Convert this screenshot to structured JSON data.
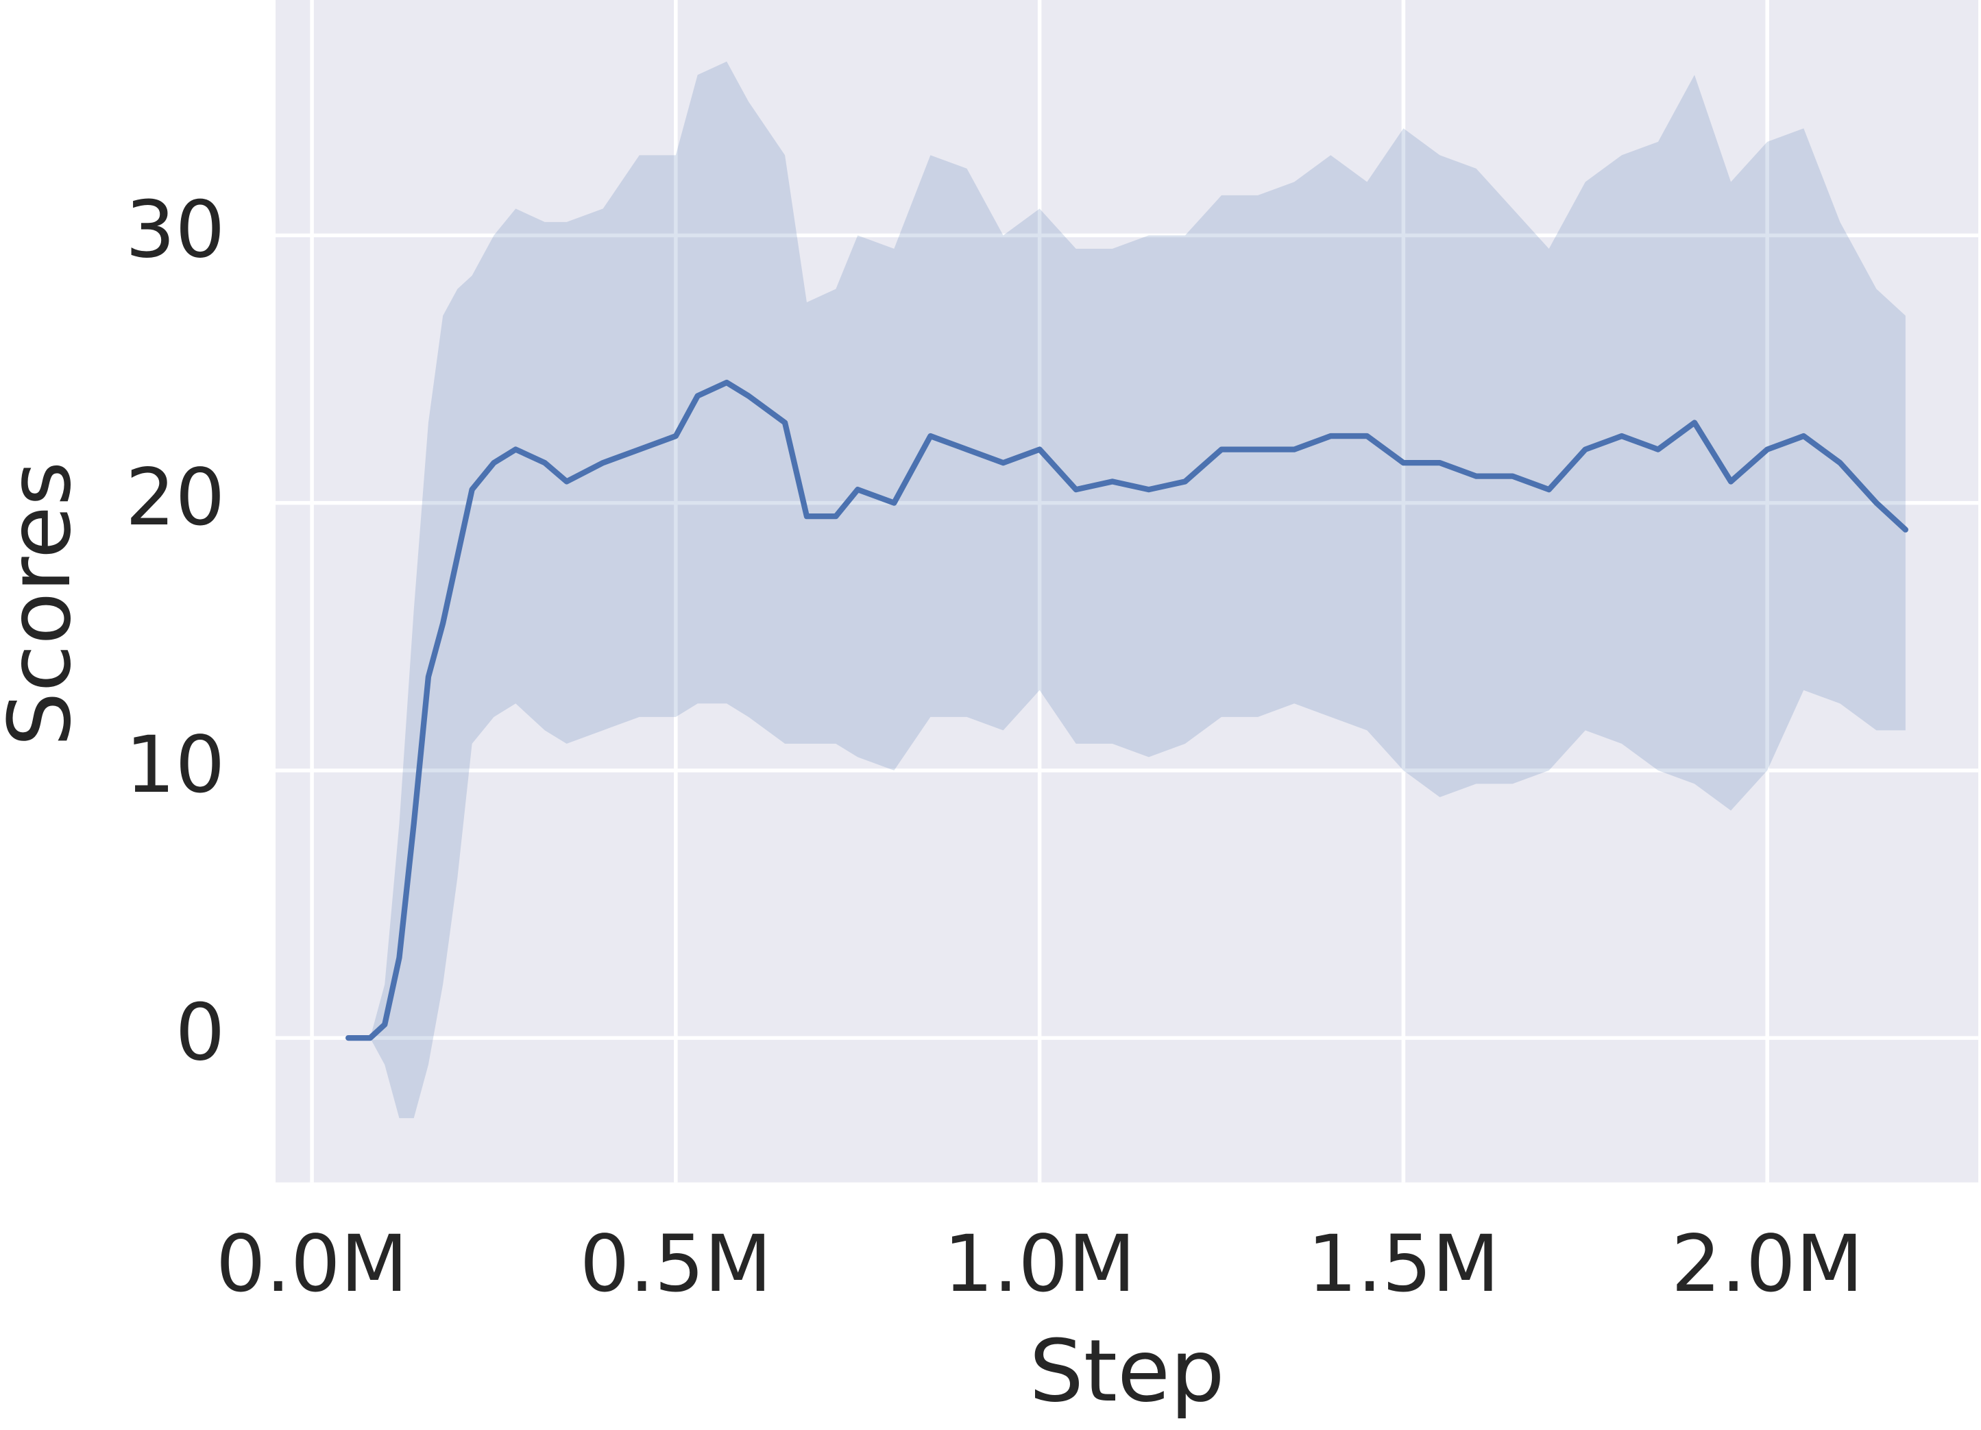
{
  "chart_data": {
    "type": "line",
    "xlabel": "Step",
    "ylabel": "Scores",
    "color": "#4c72b0",
    "background": "#eaeaf2",
    "grid": true,
    "x": [
      50000,
      80000,
      100000,
      120000,
      140000,
      160000,
      180000,
      200000,
      220000,
      250000,
      280000,
      320000,
      350000,
      400000,
      450000,
      500000,
      530000,
      570000,
      600000,
      650000,
      680000,
      720000,
      750000,
      800000,
      850000,
      900000,
      950000,
      1000000,
      1050000,
      1100000,
      1150000,
      1200000,
      1250000,
      1300000,
      1350000,
      1400000,
      1450000,
      1500000,
      1550000,
      1600000,
      1650000,
      1700000,
      1750000,
      1800000,
      1850000,
      1900000,
      1950000,
      2000000,
      2050000,
      2100000,
      2150000,
      2190000
    ],
    "values": [
      0,
      0,
      0.5,
      3,
      8,
      13.5,
      15.5,
      18,
      20.5,
      21.5,
      22,
      21.5,
      20.8,
      21.5,
      22,
      22.5,
      24,
      24.5,
      24,
      23,
      19.5,
      19.5,
      20.5,
      20,
      22.5,
      22,
      21.5,
      22,
      20.5,
      20.8,
      20.5,
      20.8,
      22,
      22,
      22,
      22.5,
      22.5,
      21.5,
      21.5,
      21,
      21,
      20.5,
      22,
      22.5,
      22,
      23,
      20.8,
      22,
      22.5,
      21.5,
      20,
      19
    ],
    "upper": [
      0,
      0,
      2,
      8,
      16,
      23,
      27,
      28,
      28.5,
      30,
      31,
      30.5,
      30.5,
      31,
      33,
      33,
      36,
      36.5,
      35,
      33,
      27.5,
      28,
      30,
      29.5,
      33,
      32.5,
      30,
      31,
      29.5,
      29.5,
      30,
      30,
      31.5,
      31.5,
      32,
      33,
      32,
      34,
      33,
      32.5,
      31,
      29.5,
      32,
      33,
      33.5,
      36,
      32,
      33.5,
      34,
      30.5,
      28,
      27
    ],
    "lower": [
      0,
      0,
      -1,
      -3,
      -3,
      -1,
      2,
      6,
      11,
      12,
      12.5,
      11.5,
      11,
      11.5,
      12,
      12,
      12.5,
      12.5,
      12,
      11,
      11,
      11,
      10.5,
      10,
      12,
      12,
      11.5,
      13,
      11,
      11,
      10.5,
      11,
      12,
      12,
      12.5,
      12,
      11.5,
      10,
      9,
      9.5,
      9.5,
      10,
      11.5,
      11,
      10,
      9.5,
      8.5,
      10,
      13,
      12.5,
      11.5,
      11.5
    ],
    "xlim": [
      -50000,
      2290000
    ],
    "xticks": [
      {
        "value": 0,
        "label": "0.0M"
      },
      {
        "value": 500000,
        "label": "0.5M"
      },
      {
        "value": 1000000,
        "label": "1.0M"
      },
      {
        "value": 1500000,
        "label": "1.5M"
      },
      {
        "value": 2000000,
        "label": "2.0M"
      }
    ],
    "ylim": [
      -5.4,
      38.8
    ],
    "yticks": [
      0,
      10,
      20,
      30
    ]
  }
}
